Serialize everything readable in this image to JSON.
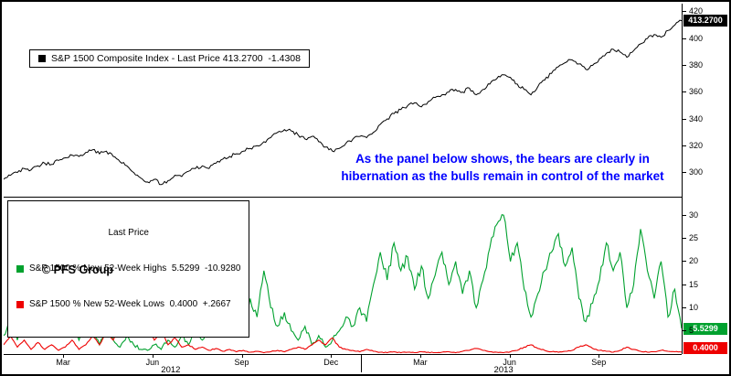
{
  "colors": {
    "line_black": "#000000",
    "up_green": "#00a12e",
    "down_red": "#ee0000",
    "annotation_blue": "#0000ff",
    "badge_text": "#ffffff"
  },
  "top_panel": {
    "legend": {
      "label": "S&P 1500 Composite Index - Last Price 413.2700  -1.4308"
    },
    "last_price_badge": "413.2700",
    "axis": {
      "labels": [
        420,
        400,
        380,
        360,
        340,
        320,
        300
      ],
      "min": 282,
      "max": 426
    }
  },
  "annotation": {
    "line1": "As the panel below shows, the bears are clearly in",
    "line2": "hibernation as the bulls remain in control of the market"
  },
  "bottom_panel": {
    "legend": {
      "title": "Last Price",
      "rows": [
        {
          "color": "#00a12e",
          "label": "S&P 1500 % New 52-Week Highs  5.5299  -10.9280"
        },
        {
          "color": "#ee0000",
          "label": "S&P 1500 % New 52-Week Lows  0.4000  +.2667"
        }
      ]
    },
    "watermark": "© PFS Group",
    "badges": {
      "highs": "5.5299",
      "lows": "0.4000"
    },
    "axis": {
      "labels": [
        30,
        25,
        20,
        15,
        10,
        5
      ],
      "min": 0,
      "max": 34
    }
  },
  "x_axis": {
    "months": [
      {
        "label": "Mar",
        "week": 8.69
      },
      {
        "label": "Jun",
        "week": 21.73
      },
      {
        "label": "Sep",
        "week": 34.76
      },
      {
        "label": "Dec",
        "week": 47.8
      },
      {
        "label": "Mar",
        "week": 60.83
      },
      {
        "label": "Jun",
        "week": 73.87
      },
      {
        "label": "Sep",
        "week": 86.9
      }
    ],
    "years": [
      {
        "label": "2012",
        "week": 24.4
      },
      {
        "label": "2013",
        "week": 73
      }
    ],
    "separator_week": 52.14,
    "domain_weeks": [
      0,
      99
    ]
  },
  "chart_data": [
    {
      "type": "line",
      "title": "S&P 1500 Composite Index - Last Price",
      "last_price": 413.27,
      "change": -1.4308,
      "color": "#000000",
      "ylim": [
        282,
        426
      ],
      "y_ticks": [
        300,
        320,
        340,
        360,
        380,
        400,
        420
      ],
      "x_ticks": [
        "Mar",
        "Jun",
        "Sep",
        "Dec",
        "Mar",
        "Jun",
        "Sep"
      ],
      "x_range": [
        "Jan 2012",
        "Nov 2013"
      ],
      "grid": false,
      "legend_position": "top-left",
      "jitter": 2.6,
      "values": [
        295,
        298,
        300,
        303,
        302,
        305,
        307,
        306,
        309,
        311,
        313,
        312,
        315,
        317,
        314,
        316,
        312,
        308,
        305,
        300,
        296,
        293,
        295,
        291,
        294,
        298,
        297,
        301,
        303,
        305,
        303,
        307,
        310,
        312,
        314,
        316,
        318,
        320,
        323,
        326,
        330,
        332,
        331,
        328,
        325,
        327,
        323,
        319,
        316,
        318,
        322,
        325,
        327,
        326,
        330,
        336,
        340,
        344,
        347,
        350,
        352,
        349,
        353,
        356,
        358,
        360,
        362,
        360,
        363,
        358,
        362,
        366,
        370,
        373,
        371,
        366,
        362,
        358,
        364,
        369,
        374,
        379,
        382,
        384,
        381,
        377,
        380,
        385,
        389,
        392,
        390,
        386,
        391,
        396,
        400,
        403,
        401,
        406,
        410,
        413.27
      ]
    },
    {
      "type": "line",
      "title": "S&P 1500 % New 52-Week Highs",
      "last_value": 5.5299,
      "change": -10.928,
      "color": "#00a12e",
      "ylim": [
        0,
        34
      ],
      "y_ticks": [
        5,
        10,
        15,
        20,
        25,
        30
      ],
      "grid": false,
      "jitter": 2.0,
      "clamp_min": 0.15,
      "values": [
        4,
        8,
        3,
        10,
        6,
        12,
        5,
        9,
        4,
        11,
        7,
        3,
        8,
        5,
        2,
        6,
        3,
        1.5,
        4,
        2,
        1,
        0.8,
        2,
        1,
        3,
        1.5,
        4,
        2,
        5,
        3,
        6,
        4,
        8,
        5,
        9,
        6,
        12,
        8,
        18,
        10,
        6,
        9,
        5,
        3,
        6,
        2,
        4,
        1.5,
        3,
        5,
        8,
        6,
        10,
        7,
        15,
        22,
        16,
        24,
        18,
        21,
        14,
        19,
        12,
        17,
        22,
        15,
        20,
        13,
        18,
        10,
        16,
        23,
        28,
        30,
        20,
        24,
        14,
        8,
        13,
        18,
        22,
        26,
        19,
        23,
        12,
        7,
        11,
        16,
        24,
        18,
        22,
        10,
        15,
        27,
        18,
        12,
        20,
        8,
        14,
        5.53
      ]
    },
    {
      "type": "line",
      "title": "S&P 1500 % New 52-Week Lows",
      "last_value": 0.4,
      "change": 0.2667,
      "color": "#ee0000",
      "ylim": [
        0,
        34
      ],
      "y_ticks": [
        5,
        10,
        15,
        20,
        25,
        30
      ],
      "grid": false,
      "jitter": 0.7,
      "clamp_min": 0.1,
      "values": [
        2,
        4,
        1.5,
        3,
        1,
        2.5,
        1,
        2,
        0.8,
        1.5,
        3,
        1,
        2,
        4,
        2,
        5,
        3,
        7,
        4,
        8,
        5,
        6.5,
        3,
        5,
        2,
        3.5,
        1.5,
        2,
        1,
        1.5,
        0.8,
        1.2,
        0.6,
        1,
        0.5,
        0.8,
        0.4,
        0.6,
        0.3,
        0.5,
        0.8,
        0.5,
        1,
        1.5,
        1,
        2,
        3,
        2,
        3.5,
        1.5,
        1,
        0.8,
        0.5,
        1,
        0.6,
        0.4,
        0.3,
        0.5,
        0.3,
        0.4,
        0.3,
        0.5,
        0.4,
        0.3,
        0.4,
        0.5,
        0.3,
        0.6,
        0.8,
        1.2,
        0.8,
        0.5,
        0.4,
        0.3,
        0.5,
        0.8,
        1.5,
        2,
        1.2,
        0.8,
        0.5,
        0.4,
        0.6,
        0.8,
        1.5,
        2,
        1.2,
        0.8,
        0.6,
        0.4,
        0.8,
        1.5,
        1,
        0.6,
        0.4,
        0.5,
        0.8,
        0.6,
        0.5,
        0.4
      ]
    }
  ]
}
